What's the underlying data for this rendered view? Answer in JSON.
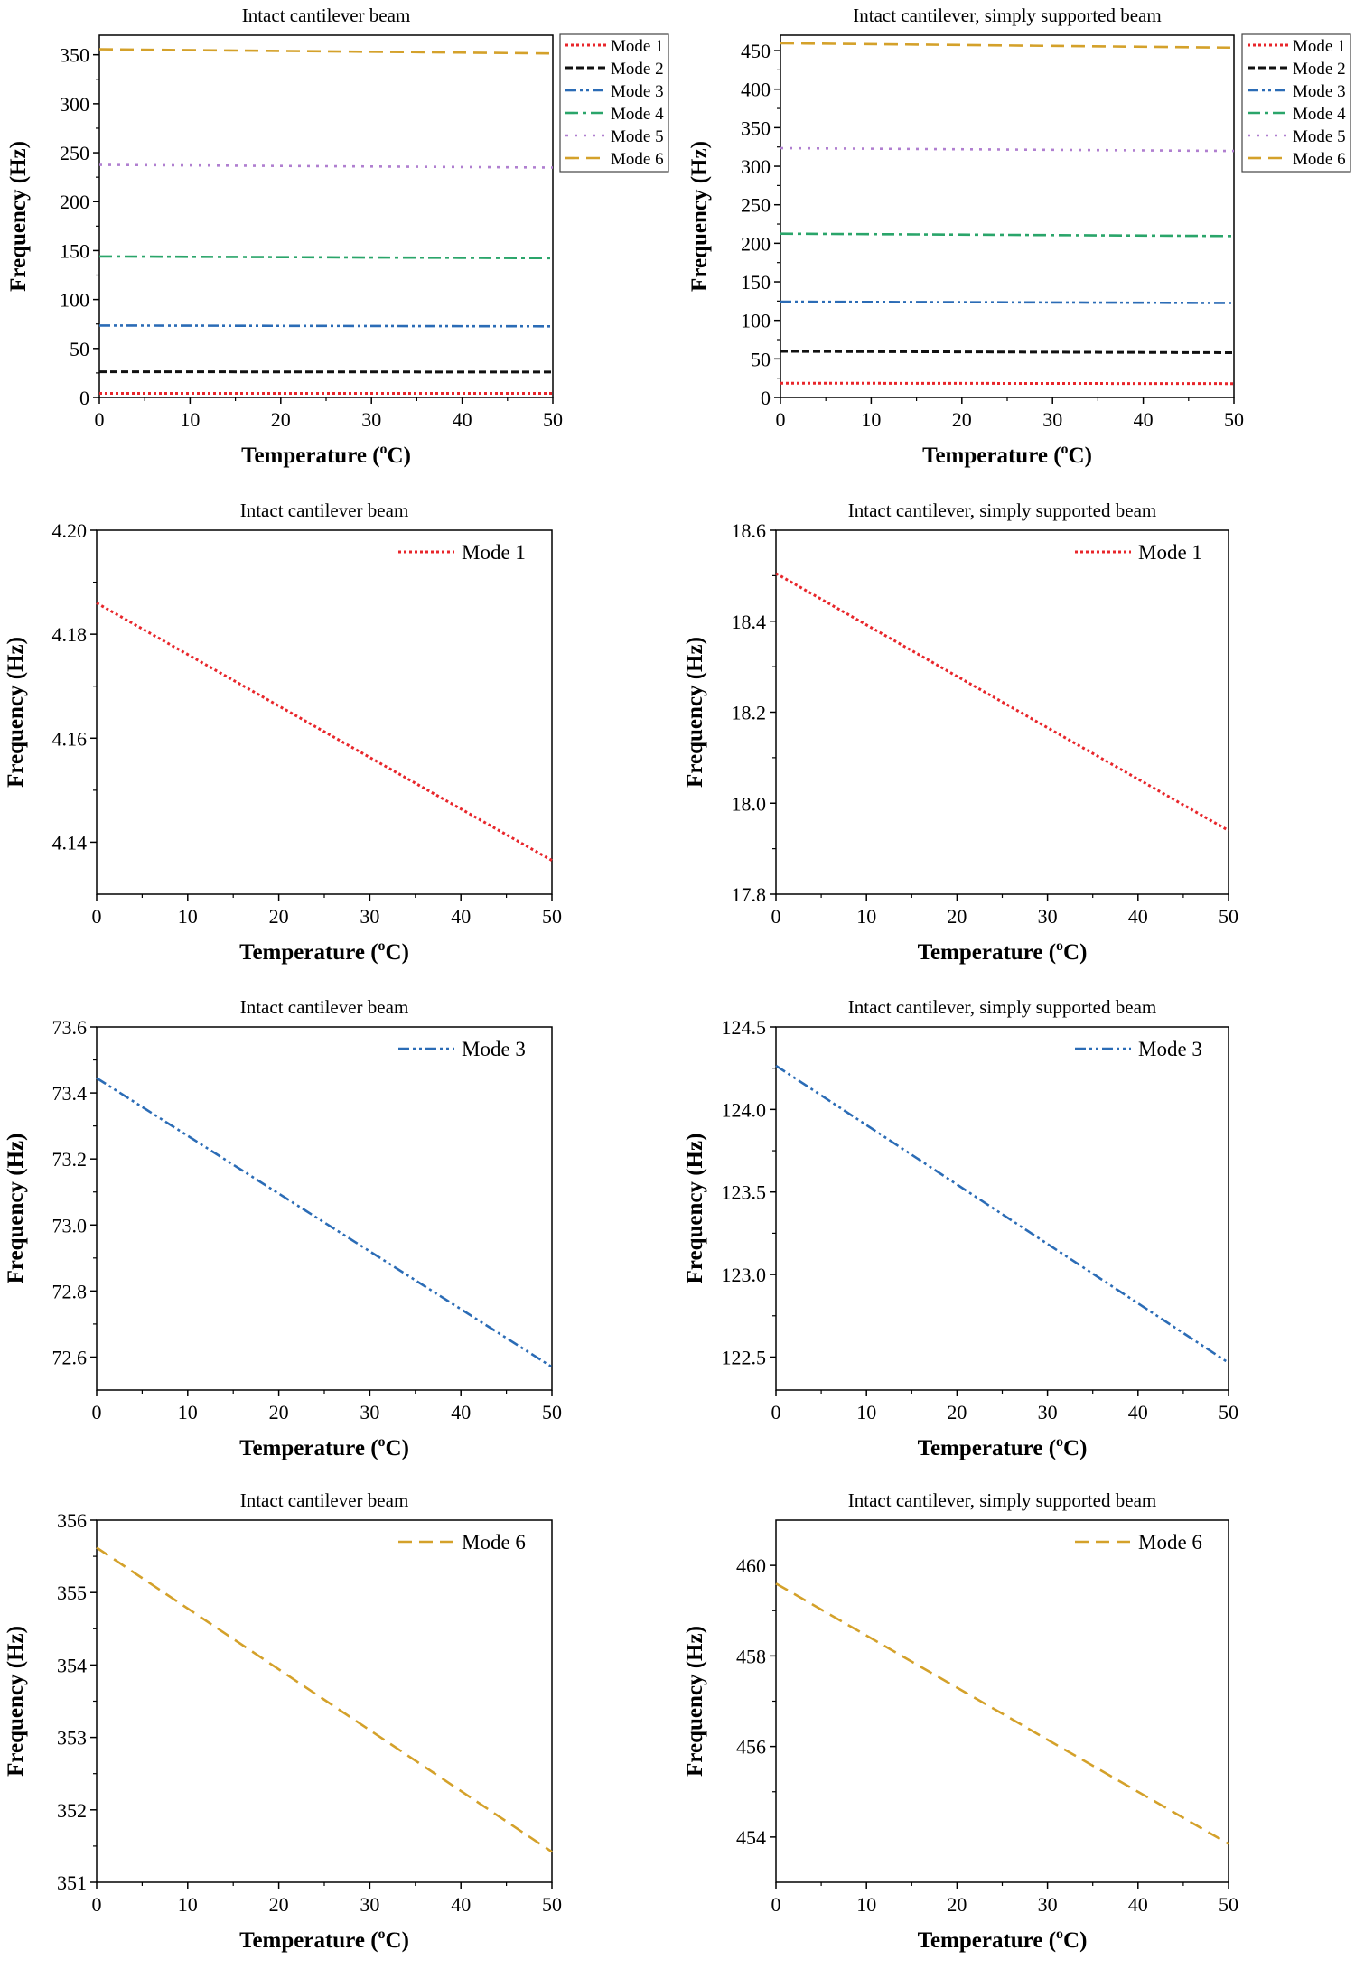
{
  "figure": {
    "temperature_label": "Temperature (",
    "temperature_unit_o": "o",
    "temperature_unit_c": "C)"
  },
  "colors": {
    "mode1": "#e8262b",
    "mode2": "#111111",
    "mode3": "#2b6cb6",
    "mode4": "#2aa56a",
    "mode5": "#b07fd0",
    "mode6": "#d4a12a"
  },
  "chart_data": [
    {
      "type": "line",
      "title": "Intact cantilever beam",
      "xlabel": "Temperature (oC)",
      "ylabel": "Frequency (Hz)",
      "xlim": [
        0,
        50
      ],
      "ylim": [
        0,
        370
      ],
      "xticks": [
        0,
        10,
        20,
        30,
        40,
        50
      ],
      "yticks": [
        0,
        50,
        100,
        150,
        200,
        250,
        300,
        350
      ],
      "tick_decimals": 0,
      "legend": "top-right-outside",
      "series": [
        {
          "name": "Mode 1",
          "x": [
            0,
            50
          ],
          "values": [
            4.186,
            4.137
          ]
        },
        {
          "name": "Mode 2",
          "x": [
            0,
            50
          ],
          "values": [
            26.2,
            25.9
          ]
        },
        {
          "name": "Mode 3",
          "x": [
            0,
            50
          ],
          "values": [
            73.44,
            72.57
          ]
        },
        {
          "name": "Mode 4",
          "x": [
            0,
            50
          ],
          "values": [
            144.0,
            142.3
          ]
        },
        {
          "name": "Mode 5",
          "x": [
            0,
            50
          ],
          "values": [
            237.6,
            234.8
          ]
        },
        {
          "name": "Mode 6",
          "x": [
            0,
            50
          ],
          "values": [
            355.6,
            351.4
          ]
        }
      ]
    },
    {
      "type": "line",
      "title": "Intact cantilever, simply supported beam",
      "xlabel": "Temperature (oC)",
      "ylabel": "Frequency (Hz)",
      "xlim": [
        0,
        50
      ],
      "ylim": [
        0,
        470
      ],
      "xticks": [
        0,
        10,
        20,
        30,
        40,
        50
      ],
      "yticks": [
        0,
        50,
        100,
        150,
        200,
        250,
        300,
        350,
        400,
        450
      ],
      "tick_decimals": 0,
      "legend": "top-right-outside",
      "series": [
        {
          "name": "Mode 1",
          "x": [
            0,
            50
          ],
          "values": [
            18.5,
            17.94
          ]
        },
        {
          "name": "Mode 2",
          "x": [
            0,
            50
          ],
          "values": [
            59.8,
            58.0
          ]
        },
        {
          "name": "Mode 3",
          "x": [
            0,
            50
          ],
          "values": [
            124.26,
            122.46
          ]
        },
        {
          "name": "Mode 4",
          "x": [
            0,
            50
          ],
          "values": [
            212.5,
            209.4
          ]
        },
        {
          "name": "Mode 5",
          "x": [
            0,
            50
          ],
          "values": [
            323.5,
            319.8
          ]
        },
        {
          "name": "Mode 6",
          "x": [
            0,
            50
          ],
          "values": [
            459.6,
            453.8
          ]
        }
      ]
    },
    {
      "type": "line",
      "title": "Intact cantilever beam",
      "xlabel": "Temperature (oC)",
      "ylabel": "Frequency (Hz)",
      "xlim": [
        0,
        50
      ],
      "ylim": [
        4.13,
        4.2
      ],
      "xticks": [
        0,
        10,
        20,
        30,
        40,
        50
      ],
      "yticks": [
        4.14,
        4.16,
        4.18,
        4.2
      ],
      "tick_decimals": 2,
      "legend": "top-right",
      "series": [
        {
          "name": "Mode 1",
          "x": [
            0,
            50
          ],
          "values": [
            4.186,
            4.1365
          ]
        }
      ]
    },
    {
      "type": "line",
      "title": "Intact cantilever, simply supported beam",
      "xlabel": "Temperature (oC)",
      "ylabel": "Frequency (Hz)",
      "xlim": [
        0,
        50
      ],
      "ylim": [
        17.8,
        18.6
      ],
      "xticks": [
        0,
        10,
        20,
        30,
        40,
        50
      ],
      "yticks": [
        17.8,
        18.0,
        18.2,
        18.4,
        18.6
      ],
      "tick_decimals": 1,
      "legend": "top-right",
      "series": [
        {
          "name": "Mode 1",
          "x": [
            0,
            50
          ],
          "values": [
            18.505,
            17.94
          ]
        }
      ]
    },
    {
      "type": "line",
      "title": "Intact cantilever beam",
      "xlabel": "Temperature (oC)",
      "ylabel": "Frequency (Hz)",
      "xlim": [
        0,
        50
      ],
      "ylim": [
        72.5,
        73.6
      ],
      "xticks": [
        0,
        10,
        20,
        30,
        40,
        50
      ],
      "yticks": [
        72.6,
        72.8,
        73.0,
        73.2,
        73.4,
        73.6
      ],
      "tick_decimals": 1,
      "legend": "top-right",
      "series": [
        {
          "name": "Mode 3",
          "x": [
            0,
            50
          ],
          "values": [
            73.445,
            72.57
          ]
        }
      ]
    },
    {
      "type": "line",
      "title": "Intact cantilever, simply supported beam",
      "xlabel": "Temperature (oC)",
      "ylabel": "Frequency (Hz)",
      "xlim": [
        0,
        50
      ],
      "ylim": [
        122.3,
        124.5
      ],
      "xticks": [
        0,
        10,
        20,
        30,
        40,
        50
      ],
      "yticks": [
        122.5,
        123.0,
        123.5,
        124.0,
        124.5
      ],
      "tick_decimals": 1,
      "legend": "top-right",
      "series": [
        {
          "name": "Mode 3",
          "x": [
            0,
            50
          ],
          "values": [
            124.265,
            122.465
          ]
        }
      ]
    },
    {
      "type": "line",
      "title": "Intact cantilever beam",
      "xlabel": "Temperature (oC)",
      "ylabel": "Frequency (Hz)",
      "xlim": [
        0,
        50
      ],
      "ylim": [
        351,
        356
      ],
      "xticks": [
        0,
        10,
        20,
        30,
        40,
        50
      ],
      "yticks": [
        351,
        352,
        353,
        354,
        355,
        356
      ],
      "tick_decimals": 0,
      "legend": "top-right",
      "series": [
        {
          "name": "Mode 6",
          "x": [
            0,
            50
          ],
          "values": [
            355.62,
            351.42
          ]
        }
      ]
    },
    {
      "type": "line",
      "title": "Intact cantilever, simply supported beam",
      "xlabel": "Temperature (oC)",
      "ylabel": "Frequency (Hz)",
      "xlim": [
        0,
        50
      ],
      "ylim": [
        453,
        461
      ],
      "xticks": [
        0,
        10,
        20,
        30,
        40,
        50
      ],
      "yticks": [
        454,
        456,
        458,
        460
      ],
      "tick_decimals": 0,
      "legend": "top-right",
      "series": [
        {
          "name": "Mode 6",
          "x": [
            0,
            50
          ],
          "values": [
            459.6,
            453.85
          ]
        }
      ]
    }
  ]
}
